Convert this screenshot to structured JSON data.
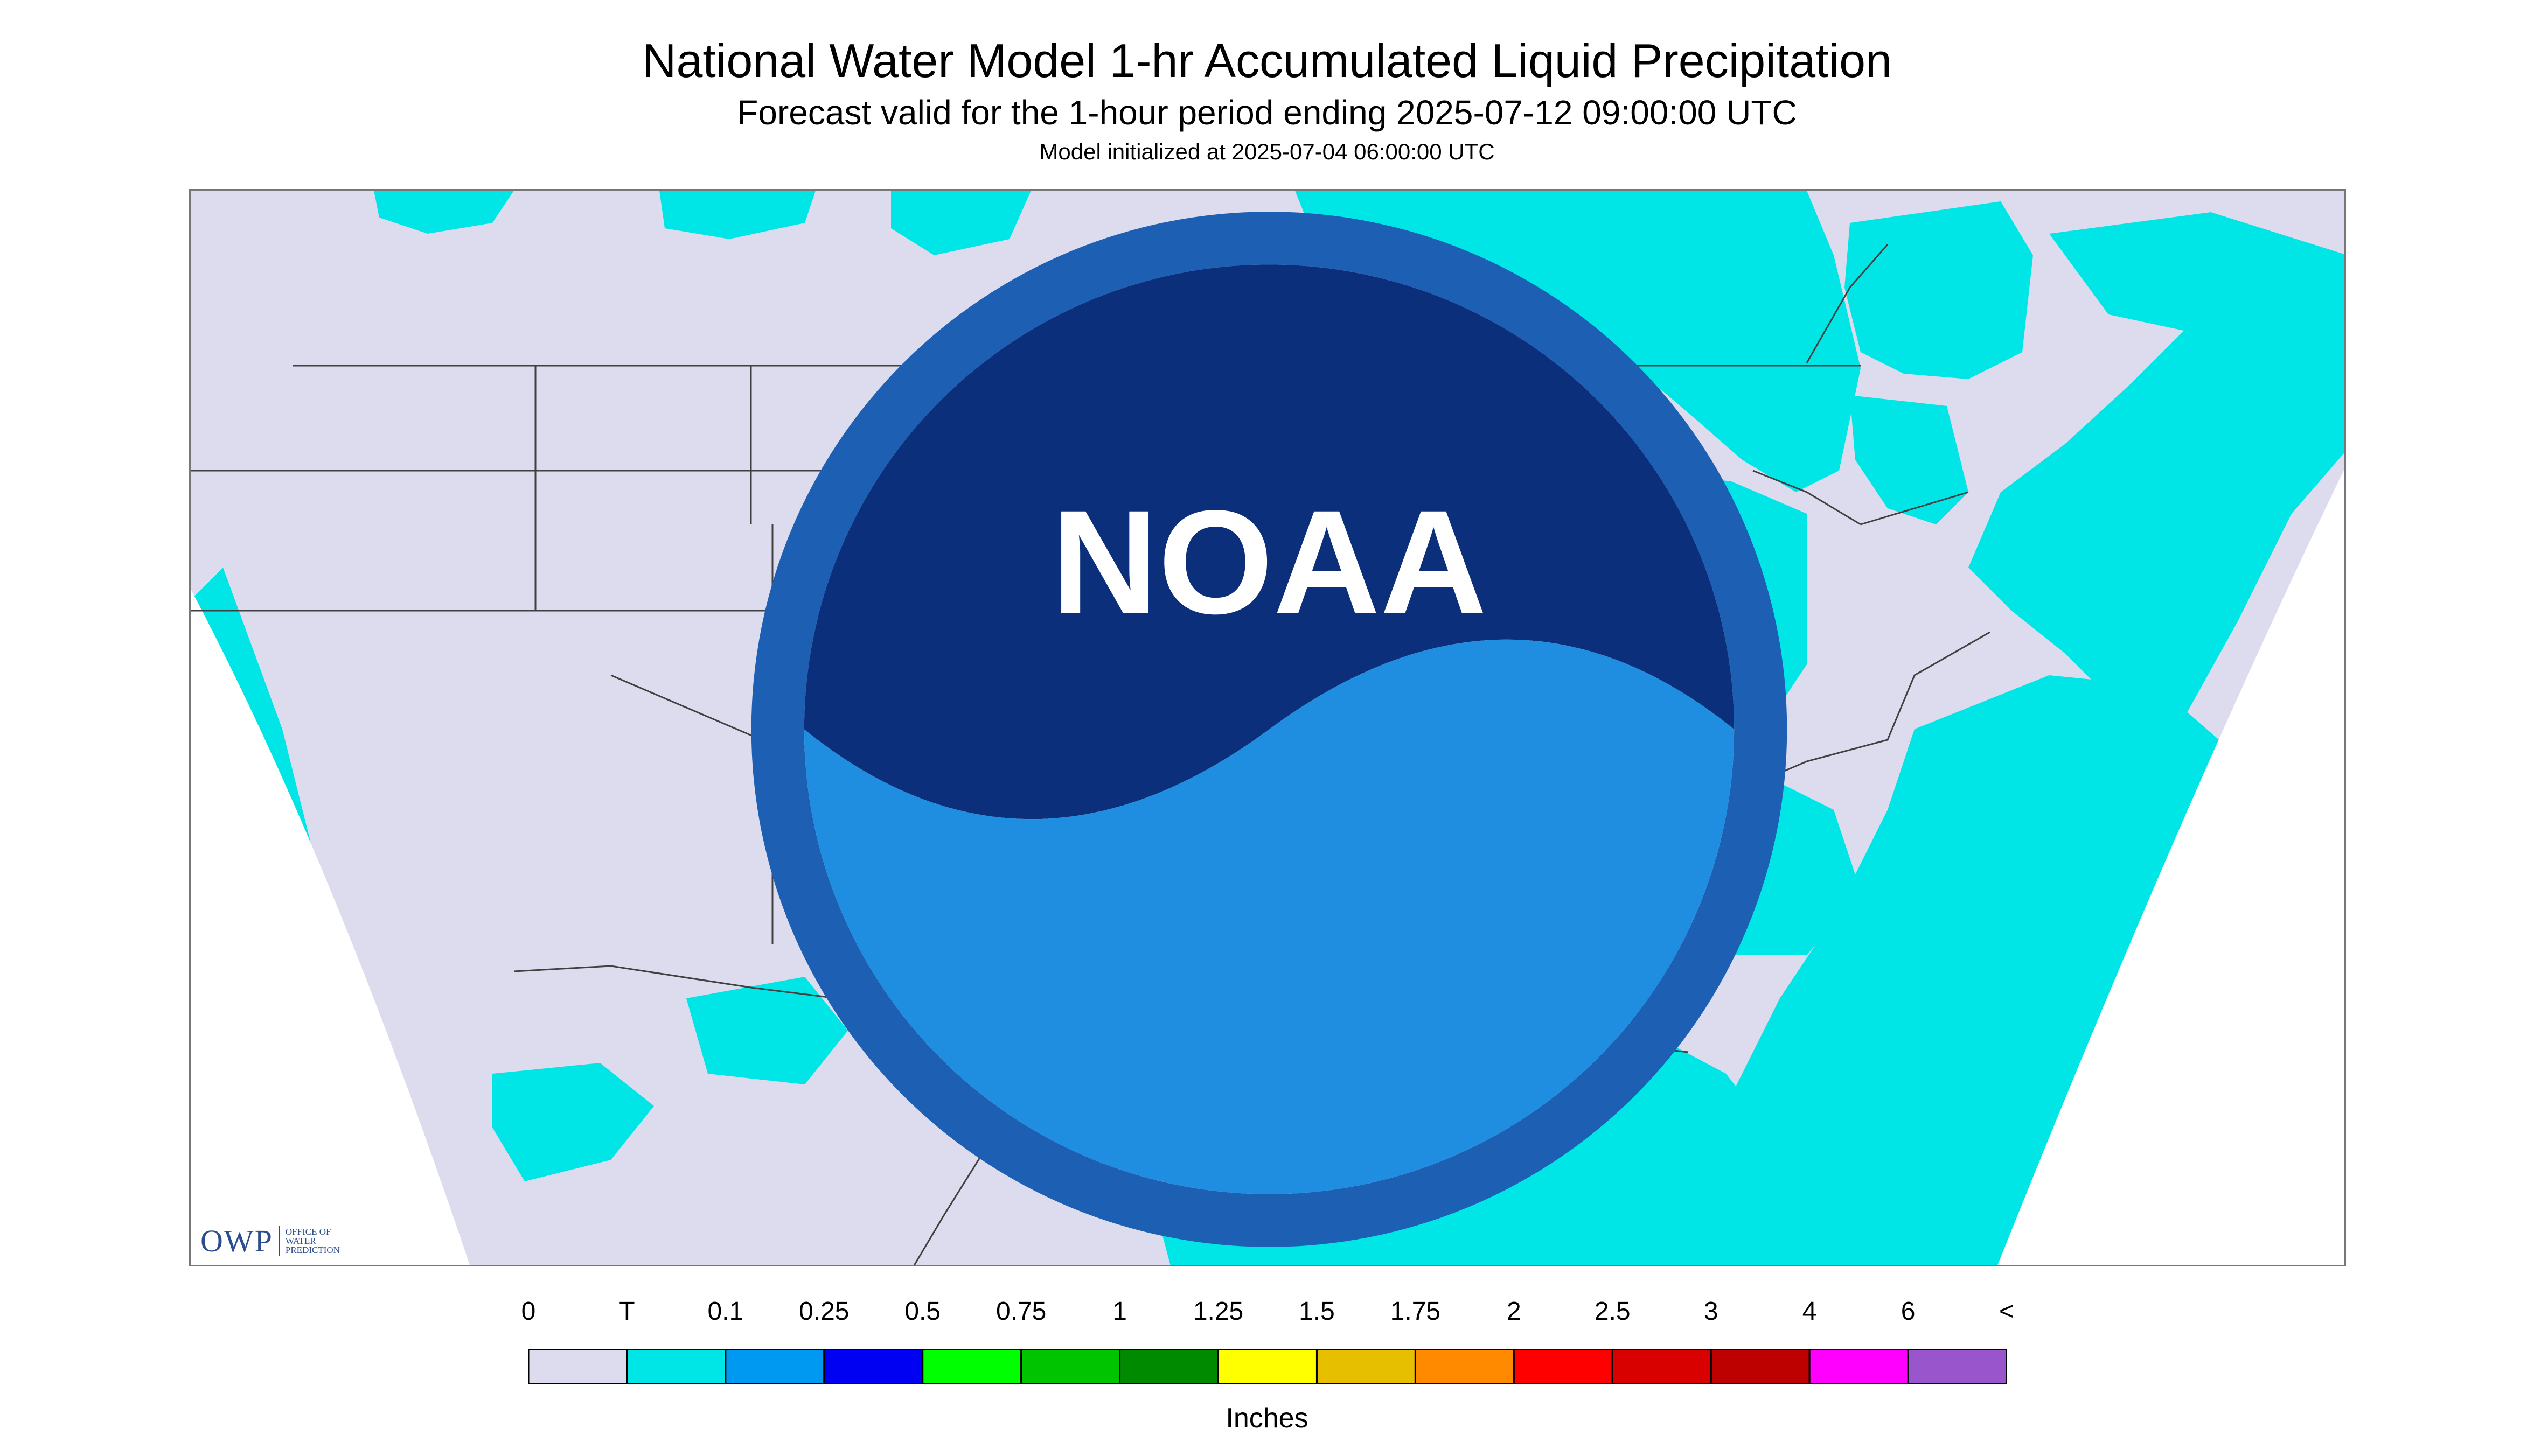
{
  "header": {
    "title": "National Water Model 1-hr Accumulated Liquid Precipitation",
    "subtitle": "Forecast valid for the 1-hour period ending 2025-07-12 09:00:00 UTC",
    "init": "Model initialized at 2025-07-04 06:00:00 UTC"
  },
  "logos": {
    "owp_mark": "OWP",
    "owp_line1": "OFFICE OF",
    "owp_line2": "WATER",
    "owp_line3": "PREDICTION",
    "noaa": "NOAA"
  },
  "legend": {
    "labels": [
      "0",
      "T",
      "0.1",
      "0.25",
      "0.5",
      "0.75",
      "1",
      "1.25",
      "1.5",
      "1.75",
      "2",
      "2.5",
      "3",
      "4",
      "6",
      "<"
    ],
    "colors": [
      "#dcdcee",
      "#00e6e6",
      "#0099f2",
      "#0000f2",
      "#00ff00",
      "#00c400",
      "#008a00",
      "#ffff00",
      "#e6bf00",
      "#ff8a00",
      "#ff0000",
      "#d90000",
      "#bd0000",
      "#ff00ff",
      "#9955cc"
    ],
    "units": "Inches"
  },
  "map": {
    "colors": {
      "background": "#dcdcee",
      "trace": "#00e6e6",
      "light": "#0099f2",
      "moderate": "#2255dd",
      "borders": "#404040"
    }
  }
}
